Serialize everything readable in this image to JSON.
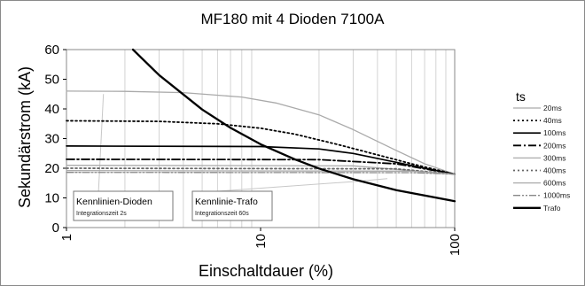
{
  "chart_data": {
    "type": "line",
    "title": "MF180 mit 4 Dioden 7100A",
    "xlabel": "Einschaltdauer (%)",
    "ylabel": "Sekundärstrom (kA)",
    "x_scale": "log",
    "xlim": [
      1,
      100
    ],
    "ylim": [
      0,
      60
    ],
    "x_ticks": [
      1,
      10,
      100
    ],
    "y_ticks": [
      0,
      10,
      20,
      30,
      40,
      50,
      60
    ],
    "x_tick_labels": [
      "1",
      "10",
      "100"
    ],
    "y_tick_labels": [
      "0",
      "10",
      "20",
      "30",
      "40",
      "50",
      "60"
    ],
    "grid": "vertical minor gridlines",
    "legend_title": "ts",
    "legend_position": "right",
    "series": [
      {
        "name": "20ms",
        "color": "#aaaaaa",
        "dash": "solid",
        "x": [
          1,
          2,
          4,
          8,
          12,
          20,
          30,
          50,
          70,
          100
        ],
        "y": [
          46,
          45.9,
          45.5,
          44,
          42,
          38,
          33,
          26,
          21.5,
          18
        ]
      },
      {
        "name": "40ms",
        "color": "#000000",
        "dash": "dot",
        "x": [
          1,
          3,
          6,
          10,
          15,
          25,
          40,
          60,
          100
        ],
        "y": [
          36,
          35.8,
          35,
          33.5,
          31.5,
          28,
          24.5,
          21.5,
          18
        ]
      },
      {
        "name": "100ms",
        "color": "#000000",
        "dash": "solid",
        "x": [
          1,
          10,
          20,
          30,
          50,
          70,
          100
        ],
        "y": [
          27.5,
          27.3,
          26.5,
          25,
          22,
          20,
          18
        ]
      },
      {
        "name": "200ms",
        "color": "#000000",
        "dash": "dashdot",
        "x": [
          1,
          20,
          50,
          100
        ],
        "y": [
          23,
          22.9,
          21.5,
          18
        ]
      },
      {
        "name": "300ms",
        "color": "#aaaaaa",
        "dash": "solid",
        "x": [
          1,
          30,
          100
        ],
        "y": [
          21,
          20.8,
          18
        ]
      },
      {
        "name": "400ms",
        "color": "#666666",
        "dash": "dot",
        "x": [
          1,
          50,
          100
        ],
        "y": [
          20,
          19.8,
          18
        ]
      },
      {
        "name": "600ms",
        "color": "#aaaaaa",
        "dash": "solid",
        "x": [
          1,
          60,
          100
        ],
        "y": [
          19.2,
          19,
          18
        ]
      },
      {
        "name": "1000ms",
        "color": "#888888",
        "dash": "dashdotdot",
        "x": [
          1,
          60,
          100
        ],
        "y": [
          18.6,
          18.5,
          18
        ]
      },
      {
        "name": "Trafo",
        "color": "#000000",
        "dash": "thick",
        "x": [
          2.2,
          3,
          5,
          7,
          10,
          15,
          20,
          30,
          50,
          100
        ],
        "y": [
          60,
          51.4,
          39.8,
          33.6,
          28.1,
          23,
          19.9,
          16.3,
          12.6,
          8.9
        ]
      }
    ],
    "annotations": [
      {
        "title": "Kennlinien-Dioden",
        "subtitle": "Integrationszeit 2s"
      },
      {
        "title": "Kennlinie-Trafo",
        "subtitle": "Integrationszeit 60s"
      }
    ]
  }
}
